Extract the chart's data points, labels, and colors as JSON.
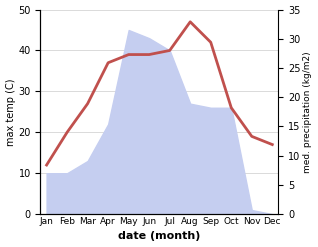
{
  "months": [
    "Jan",
    "Feb",
    "Mar",
    "Apr",
    "May",
    "Jun",
    "Jul",
    "Aug",
    "Sep",
    "Oct",
    "Nov",
    "Dec"
  ],
  "temperature": [
    12,
    20,
    27,
    37,
    39,
    39,
    40,
    47,
    42,
    26,
    19,
    17
  ],
  "precipitation_left_scale": [
    10,
    10,
    13,
    22,
    45,
    43,
    40,
    27,
    26,
    26,
    1,
    0
  ],
  "temp_color": "#c0504d",
  "precip_fill_color": "#c5cef0",
  "temp_ylim": [
    0,
    50
  ],
  "precip_ylim": [
    0,
    35
  ],
  "temp_yticks": [
    0,
    10,
    20,
    30,
    40,
    50
  ],
  "precip_yticks": [
    0,
    5,
    10,
    15,
    20,
    25,
    30,
    35
  ],
  "xlabel": "date (month)",
  "ylabel_left": "max temp (C)",
  "ylabel_right": "med. precipitation (kg/m2)",
  "line_width": 2.0,
  "bg_color": "#f0f0f0"
}
